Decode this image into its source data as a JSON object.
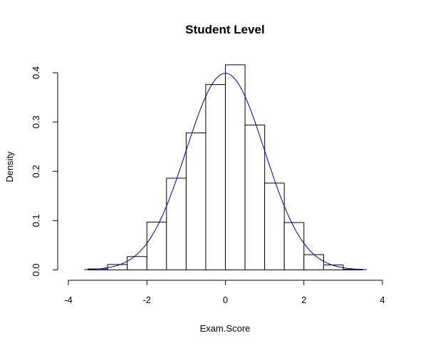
{
  "chart_data": {
    "type": "bar",
    "title": "Student Level",
    "xlabel": "Exam.Score",
    "ylabel": "Density",
    "xlim": [
      -4,
      4
    ],
    "ylim": [
      0,
      0.42
    ],
    "x_ticks": [
      "-4",
      "-2",
      "0",
      "2",
      "4"
    ],
    "y_ticks": [
      "0.0",
      "0.1",
      "0.2",
      "0.3",
      "0.4"
    ],
    "bins": [
      {
        "x0": -3.5,
        "x1": -3.0,
        "density": 0.002
      },
      {
        "x0": -3.0,
        "x1": -2.5,
        "density": 0.011
      },
      {
        "x0": -2.5,
        "x1": -2.0,
        "density": 0.027
      },
      {
        "x0": -2.0,
        "x1": -1.5,
        "density": 0.097
      },
      {
        "x0": -1.5,
        "x1": -1.0,
        "density": 0.186
      },
      {
        "x0": -1.0,
        "x1": -0.5,
        "density": 0.278
      },
      {
        "x0": -0.5,
        "x1": 0.0,
        "density": 0.376
      },
      {
        "x0": 0.0,
        "x1": 0.5,
        "density": 0.416
      },
      {
        "x0": 0.5,
        "x1": 1.0,
        "density": 0.294
      },
      {
        "x0": 1.0,
        "x1": 1.5,
        "density": 0.176
      },
      {
        "x0": 1.5,
        "x1": 2.0,
        "density": 0.096
      },
      {
        "x0": 2.0,
        "x1": 2.5,
        "density": 0.031
      },
      {
        "x0": 2.5,
        "x1": 3.0,
        "density": 0.01
      },
      {
        "x0": 3.0,
        "x1": 3.5,
        "density": 0.001
      }
    ],
    "overlay": {
      "type": "normal-density",
      "mean": 0,
      "sd": 1,
      "color": "#00008B"
    },
    "bar_fill": "#ffffff",
    "bar_stroke": "#000000",
    "grid": false,
    "legend": "none"
  }
}
